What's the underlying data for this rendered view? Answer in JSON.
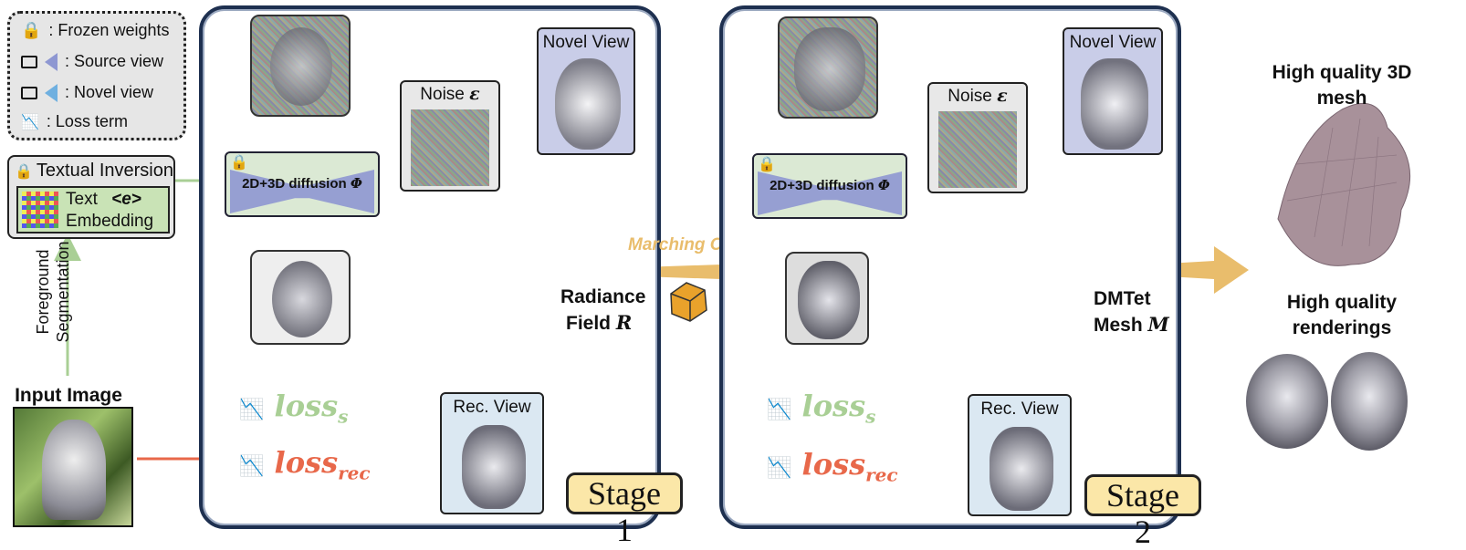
{
  "legend": {
    "frozen": ": Frozen weights",
    "source": ": Source view",
    "novel": ": Novel view",
    "loss": ": Loss term"
  },
  "textual_inversion": {
    "title": "Textual Inversion",
    "text_line1": "Text",
    "token": "<e>",
    "text_line2": "Embedding"
  },
  "foreground_seg": {
    "line1": "Foreground",
    "line2": "Segmentation"
  },
  "input_image": "Input Image",
  "stage1": {
    "novel_view": "Novel View",
    "noise": "Noise",
    "noise_symbol": "ε",
    "diffusion": "2D+3D diffusion",
    "diffusion_symbol": "Φ",
    "rec_view": "Rec. View",
    "field_line1": "Radiance",
    "field_line2": "Field",
    "field_symbol": "R",
    "loss_s": "loss",
    "loss_s_sub": "s",
    "loss_rec": "loss",
    "loss_rec_sub": "rec",
    "stage": "Stage 1"
  },
  "marching_cube": "Marching Cube",
  "stage2": {
    "novel_view": "Novel View",
    "noise": "Noise",
    "noise_symbol": "ε",
    "diffusion": "2D+3D diffusion",
    "diffusion_symbol": "Φ",
    "rec_view": "Rec. View",
    "field_line1": "DMTet",
    "field_line2": "Mesh",
    "field_symbol": "M",
    "loss_s": "loss",
    "loss_s_sub": "s",
    "loss_rec": "loss",
    "loss_rec_sub": "rec",
    "stage": "Stage 2"
  },
  "outputs": {
    "mesh_line1": "High quality 3D",
    "mesh_line2": "mesh",
    "render_line1": "High quality",
    "render_line2": "renderings"
  },
  "colors": {
    "green_arrow": "#a9cf95",
    "red_arrow": "#e8684a",
    "gold_arrow": "#e9bd6c",
    "stage_border": "#1e3050",
    "view_box_stage1": "#c9cde8",
    "rec_box": "#dbe8f2",
    "stage_label_bg": "#fbe7a8"
  }
}
